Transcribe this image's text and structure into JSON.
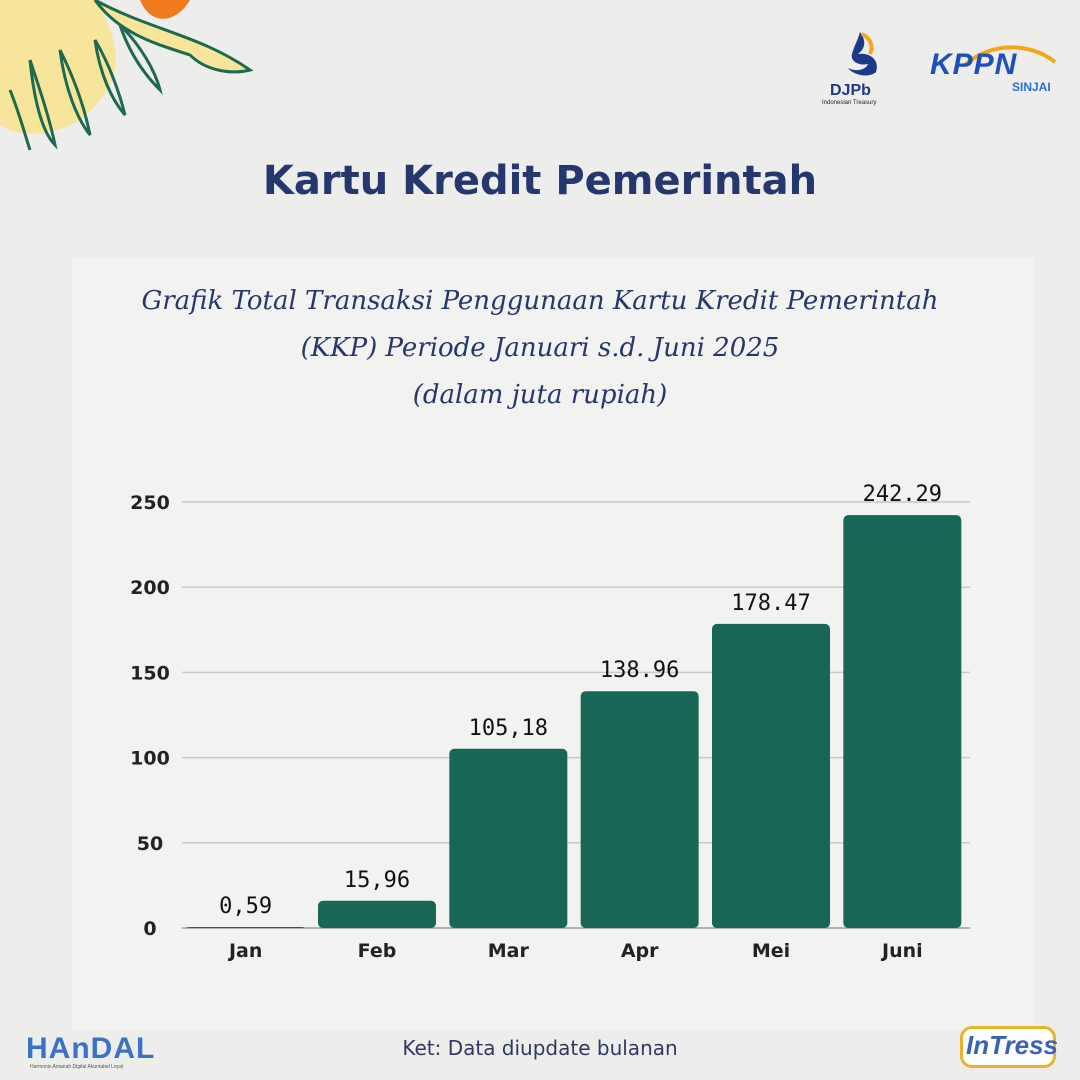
{
  "header": {
    "title": "Kartu Kredit Pemerintah",
    "logos": {
      "djpb": {
        "name": "DJPb",
        "subtitle": "Indonesian Treasury"
      },
      "kppn": {
        "name": "KPPN",
        "subtitle": "SINJAI"
      }
    }
  },
  "chart_title_lines": [
    "Grafik Total Transaksi Penggunaan Kartu Kredit Pemerintah",
    "(KKP) Periode Januari s.d. Juni 2025",
    "(dalam juta rupiah)"
  ],
  "chart_data": {
    "type": "bar",
    "categories": [
      "Jan",
      "Feb",
      "Mar",
      "Apr",
      "Mei",
      "Juni"
    ],
    "values": [
      0.59,
      15.96,
      105.18,
      138.96,
      178.47,
      242.29
    ],
    "data_labels": [
      "0,59",
      "15,96",
      "105,18",
      "138.96",
      "178.47",
      "242.29"
    ],
    "y_ticks": [
      0,
      50,
      100,
      150,
      200,
      250
    ],
    "ylim": [
      0,
      250
    ],
    "grid": true,
    "bar_color": "#186656"
  },
  "footer": {
    "note": "Ket: Data diupdate bulanan",
    "left_logo": {
      "name": "HAnDAL",
      "tagline": "Harmonis  Amanah  Digital  Akuntabel  Loyal"
    },
    "right_logo": {
      "name": "InTress"
    }
  },
  "colors": {
    "background": "#ededeb",
    "title": "#26376e",
    "bar": "#186656",
    "deco_orange": "#f07a1c",
    "deco_yellow": "#f6e59a",
    "deco_green": "#1e6a4e"
  }
}
